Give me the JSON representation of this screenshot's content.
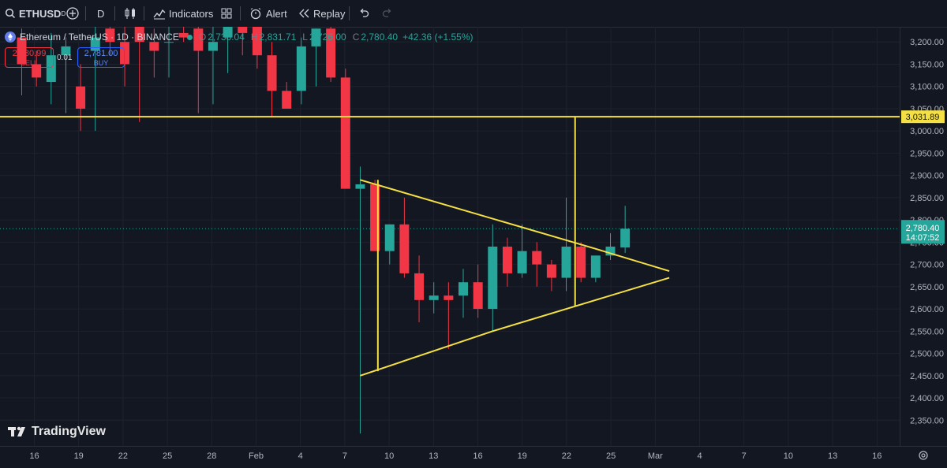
{
  "toolbar": {
    "symbol": "ETHUSD",
    "interval": "D",
    "indicators_label": "Indicators",
    "alert_label": "Alert",
    "replay_label": "Replay"
  },
  "legend": {
    "title": "Ethereum / TetherUS · 1D · BINANCE",
    "open_label": "O",
    "open": "2,738.04",
    "high_label": "H",
    "high": "2,831.71",
    "low_label": "L",
    "low": "2,726.00",
    "close_label": "C",
    "close": "2,780.40",
    "change": "+42.36 (+1.55%)"
  },
  "order": {
    "sell_price": "2,780.99",
    "sell_label": "SELL",
    "quantity": "0.01",
    "buy_price": "2,781.00",
    "buy_label": "BUY"
  },
  "watermark": "TradingView",
  "colors": {
    "up": "#26a69a",
    "down": "#f23645",
    "drawing": "#f5e044",
    "background": "#131722"
  },
  "chart_data": {
    "type": "candlestick",
    "symbol": "ETHUSD",
    "timeframe": "1D",
    "y_axis": {
      "min": 2300,
      "max": 3250,
      "ticks": [
        2350,
        2400,
        2450,
        2500,
        2550,
        2600,
        2650,
        2700,
        2750,
        2800,
        2850,
        2900,
        2950,
        3000,
        3050,
        3100,
        3150,
        3200
      ]
    },
    "x_axis_labels": [
      "16",
      "19",
      "22",
      "25",
      "28",
      "Feb",
      "4",
      "7",
      "10",
      "13",
      "16",
      "19",
      "22",
      "25",
      "Mar",
      "4",
      "7",
      "10",
      "13",
      "16"
    ],
    "candles": [
      {
        "i": 1,
        "o": 3210,
        "h": 3230,
        "l": 3080,
        "c": 3150
      },
      {
        "i": 2,
        "o": 3150,
        "h": 3180,
        "l": 3100,
        "c": 3120
      },
      {
        "i": 3,
        "o": 3110,
        "h": 3220,
        "l": 3060,
        "c": 3170
      },
      {
        "i": 4,
        "o": 3170,
        "h": 3210,
        "l": 3040,
        "c": 3190
      },
      {
        "i": 5,
        "o": 3100,
        "h": 3150,
        "l": 3000,
        "c": 3050
      },
      {
        "i": 6,
        "o": 3180,
        "h": 3240,
        "l": 3000,
        "c": 3210
      },
      {
        "i": 7,
        "o": 3230,
        "h": 3250,
        "l": 3170,
        "c": 3200
      },
      {
        "i": 8,
        "o": 3200,
        "h": 3240,
        "l": 3100,
        "c": 3150
      },
      {
        "i": 9,
        "o": 3240,
        "h": 3270,
        "l": 3020,
        "c": 3200
      },
      {
        "i": 10,
        "o": 3200,
        "h": 3230,
        "l": 3120,
        "c": 3180
      },
      {
        "i": 11,
        "o": 3200,
        "h": 3290,
        "l": 3120,
        "c": 3200
      },
      {
        "i": 12,
        "o": 3220,
        "h": 3260,
        "l": 3200,
        "c": 3210
      },
      {
        "i": 13,
        "o": 3230,
        "h": 3270,
        "l": 3040,
        "c": 3180
      },
      {
        "i": 14,
        "o": 3180,
        "h": 3240,
        "l": 3060,
        "c": 3200
      },
      {
        "i": 15,
        "o": 3210,
        "h": 3260,
        "l": 3130,
        "c": 3250
      },
      {
        "i": 16,
        "o": 3250,
        "h": 3260,
        "l": 3170,
        "c": 3220
      },
      {
        "i": 17,
        "o": 3260,
        "h": 3280,
        "l": 3140,
        "c": 3170
      },
      {
        "i": 18,
        "o": 3170,
        "h": 3200,
        "l": 3030,
        "c": 3090
      },
      {
        "i": 19,
        "o": 3090,
        "h": 3110,
        "l": 3050,
        "c": 3050
      },
      {
        "i": 20,
        "o": 3090,
        "h": 3210,
        "l": 3060,
        "c": 3190
      },
      {
        "i": 21,
        "o": 3190,
        "h": 3230,
        "l": 3100,
        "c": 3230
      },
      {
        "i": 22,
        "o": 3230,
        "h": 3250,
        "l": 3110,
        "c": 3120
      },
      {
        "i": 23,
        "o": 3120,
        "h": 3140,
        "l": 2870,
        "c": 2870
      },
      {
        "i": 24,
        "o": 2870,
        "h": 2920,
        "l": 2320,
        "c": 2880
      },
      {
        "i": 25,
        "o": 2880,
        "h": 2890,
        "l": 2730,
        "c": 2730
      },
      {
        "i": 26,
        "o": 2730,
        "h": 2790,
        "l": 2700,
        "c": 2790
      },
      {
        "i": 27,
        "o": 2790,
        "h": 2850,
        "l": 2670,
        "c": 2680
      },
      {
        "i": 28,
        "o": 2680,
        "h": 2720,
        "l": 2570,
        "c": 2620
      },
      {
        "i": 29,
        "o": 2620,
        "h": 2660,
        "l": 2590,
        "c": 2630
      },
      {
        "i": 30,
        "o": 2630,
        "h": 2660,
        "l": 2510,
        "c": 2620
      },
      {
        "i": 31,
        "o": 2630,
        "h": 2690,
        "l": 2580,
        "c": 2660
      },
      {
        "i": 32,
        "o": 2660,
        "h": 2700,
        "l": 2580,
        "c": 2600
      },
      {
        "i": 33,
        "o": 2600,
        "h": 2790,
        "l": 2550,
        "c": 2740
      },
      {
        "i": 34,
        "o": 2740,
        "h": 2760,
        "l": 2650,
        "c": 2680
      },
      {
        "i": 35,
        "o": 2680,
        "h": 2790,
        "l": 2670,
        "c": 2730
      },
      {
        "i": 36,
        "o": 2730,
        "h": 2750,
        "l": 2650,
        "c": 2700
      },
      {
        "i": 37,
        "o": 2700,
        "h": 2710,
        "l": 2640,
        "c": 2670
      },
      {
        "i": 38,
        "o": 2670,
        "h": 2850,
        "l": 2640,
        "c": 2740
      },
      {
        "i": 39,
        "o": 2740,
        "h": 2750,
        "l": 2660,
        "c": 2670
      },
      {
        "i": 40,
        "o": 2670,
        "h": 2720,
        "l": 2660,
        "c": 2720
      },
      {
        "i": 41,
        "o": 2720,
        "h": 2770,
        "l": 2710,
        "c": 2740
      },
      {
        "i": 42,
        "o": 2738.04,
        "h": 2831.71,
        "l": 2726,
        "c": 2780.4
      }
    ],
    "horizontal_line": {
      "price": 3031.89,
      "label": "3,031.89"
    },
    "current_price": {
      "price": 2780.4,
      "label": "2,780.40",
      "countdown": "14:07:52"
    },
    "annotations": {
      "triangle_upper": [
        [
          24,
          2890
        ],
        [
          40,
          2735
        ],
        [
          45,
          2685
        ]
      ],
      "triangle_lower": [
        [
          24,
          2450
        ],
        [
          33,
          2550
        ],
        [
          45,
          2670
        ]
      ],
      "vertical_lines": [
        {
          "i": 25.2,
          "from": 2460,
          "to": 2890
        },
        {
          "i": 38.6,
          "from": 2605,
          "to": 3031.89
        }
      ]
    }
  }
}
